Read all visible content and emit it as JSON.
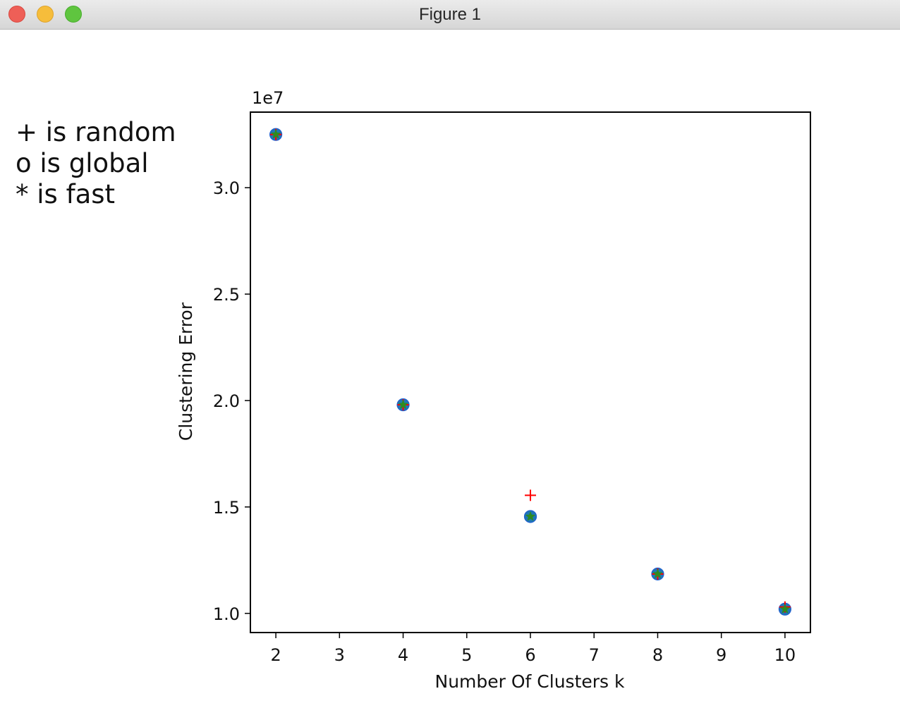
{
  "window": {
    "title": "Figure 1"
  },
  "annotation_lines": [
    "+ is random",
    "o is global",
    "* is fast"
  ],
  "chart_data": {
    "type": "scatter",
    "title": "",
    "xlabel": "Number Of Clusters k",
    "ylabel": "Clustering Error",
    "offset_label": "1e7",
    "y_scale_factor": 10000000,
    "xlim": [
      1.6,
      10.4
    ],
    "ylim": [
      0.91,
      3.355
    ],
    "x_ticks": [
      2,
      3,
      4,
      5,
      6,
      7,
      8,
      9,
      10
    ],
    "y_ticks": [
      1.0,
      1.5,
      2.0,
      2.5,
      3.0
    ],
    "y_tick_labels": [
      "1.0",
      "1.5",
      "2.0",
      "2.5",
      "3.0"
    ],
    "grid": false,
    "legend": "none",
    "series": [
      {
        "marker": "o",
        "color": "#1f77b4",
        "x": [
          2,
          4,
          6,
          8,
          10
        ],
        "y": [
          3.25,
          1.98,
          1.455,
          1.185,
          1.02
        ]
      },
      {
        "marker": "+",
        "color": "#ff0000",
        "x": [
          2,
          4,
          6,
          8,
          10
        ],
        "y": [
          3.25,
          1.98,
          1.555,
          1.185,
          1.03
        ]
      },
      {
        "marker": "*",
        "color": "#2e8b22",
        "x": [
          2,
          4,
          6,
          8,
          10
        ],
        "y": [
          3.25,
          1.98,
          1.455,
          1.185,
          1.02
        ]
      }
    ]
  }
}
